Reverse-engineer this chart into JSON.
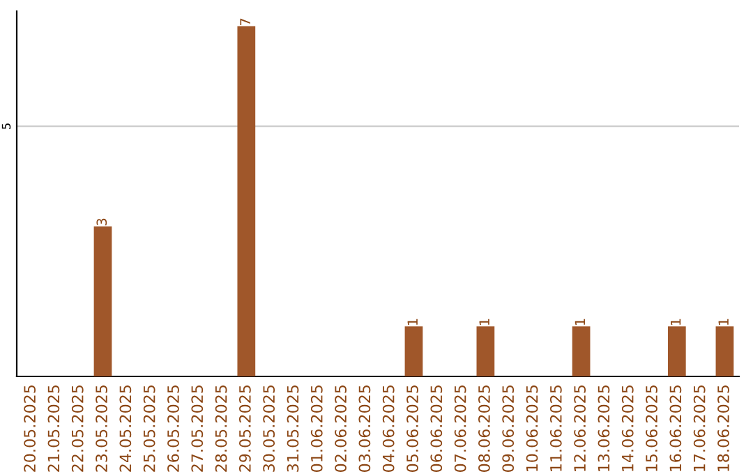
{
  "chart_data": {
    "type": "bar",
    "categories": [
      "20.05.2025",
      "21.05.2025",
      "22.05.2025",
      "23.05.2025",
      "24.05.2025",
      "25.05.2025",
      "26.05.2025",
      "27.05.2025",
      "28.05.2025",
      "29.05.2025",
      "30.05.2025",
      "31.05.2025",
      "01.06.2025",
      "02.06.2025",
      "03.06.2025",
      "04.06.2025",
      "05.06.2025",
      "06.06.2025",
      "07.06.2025",
      "08.06.2025",
      "09.06.2025",
      "10.06.2025",
      "11.06.2025",
      "12.06.2025",
      "13.06.2025",
      "14.06.2025",
      "15.06.2025",
      "16.06.2025",
      "17.06.2025",
      "18.06.2025"
    ],
    "values": [
      0,
      0,
      0,
      3,
      0,
      0,
      0,
      0,
      0,
      7,
      0,
      0,
      0,
      0,
      0,
      0,
      1,
      0,
      0,
      1,
      0,
      0,
      0,
      1,
      0,
      0,
      0,
      1,
      0,
      1
    ],
    "value_labels": [
      null,
      null,
      null,
      "3",
      null,
      null,
      null,
      null,
      null,
      "7",
      null,
      null,
      null,
      null,
      null,
      null,
      "1",
      null,
      null,
      "1",
      null,
      null,
      null,
      "1",
      null,
      null,
      null,
      "1",
      null,
      "1"
    ],
    "color": "#a0572a",
    "ylim": [
      0,
      7.3
    ],
    "yticks": [
      5
    ],
    "grid": "y"
  }
}
